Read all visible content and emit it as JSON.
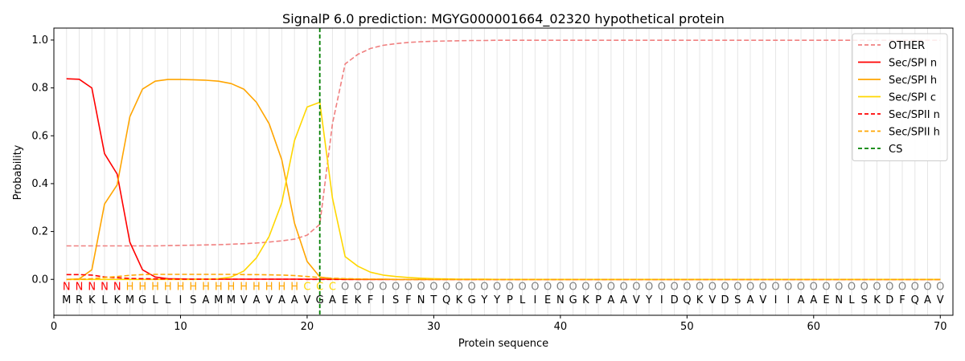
{
  "chart_data": {
    "type": "line",
    "title": "SignalP 6.0 prediction: MGYG000001664_02320 hypothetical protein",
    "xlabel": "Protein sequence",
    "ylabel": "Probability",
    "xlim": [
      0,
      71
    ],
    "ylim": [
      -0.15,
      1.05
    ],
    "x_ticks": [
      0,
      10,
      20,
      30,
      40,
      50,
      60,
      70
    ],
    "y_ticks": [
      0.0,
      0.2,
      0.4,
      0.6,
      0.8,
      1.0
    ],
    "x_tick_labels": [
      "0",
      "10",
      "20",
      "30",
      "40",
      "50",
      "60",
      "70"
    ],
    "y_tick_labels": [
      "0.0",
      "0.2",
      "0.4",
      "0.6",
      "0.8",
      "1.0"
    ],
    "legend_position": "top-right",
    "sequence": "MRKLKMGLLISAMMVAVAAVGAEKFISFNTQKGYYPLIENGKPAAVYIDQKVDSAVIIAAENLSKDFQAV",
    "labels": "NNNNNHHHHHHHHHHHHHHCCCOOOOOOOOOOOOOOOOOOOOOOOOOOOOOOOOOOOOOOOOOOOOOOOOO",
    "label_colors": {
      "N": "#ff0000",
      "H": "#ffa500",
      "C": "#ffd700",
      "O": "#808080"
    },
    "cs_position": 21,
    "series": [
      {
        "name": "OTHER",
        "color": "#f08080",
        "dash": true,
        "values": [
          0.14,
          0.14,
          0.14,
          0.14,
          0.14,
          0.14,
          0.14,
          0.14,
          0.141,
          0.142,
          0.143,
          0.144,
          0.145,
          0.147,
          0.149,
          0.152,
          0.156,
          0.161,
          0.168,
          0.185,
          0.23,
          0.65,
          0.9,
          0.94,
          0.965,
          0.978,
          0.985,
          0.99,
          0.993,
          0.995,
          0.996,
          0.997,
          0.998,
          0.998,
          0.999,
          0.999,
          0.999,
          0.999,
          0.999,
          0.999,
          0.999,
          0.999,
          0.999,
          0.999,
          0.999,
          0.999,
          0.999,
          0.999,
          0.999,
          0.999,
          0.999,
          0.999,
          0.999,
          0.999,
          0.999,
          0.999,
          0.999,
          0.999,
          0.999,
          0.999,
          0.999,
          0.999,
          0.999,
          0.999,
          0.999,
          0.999,
          0.999,
          0.999,
          0.999,
          0.999
        ]
      },
      {
        "name": "Sec/SPI n",
        "color": "#ff0000",
        "dash": false,
        "values": [
          0.838,
          0.836,
          0.8,
          0.525,
          0.44,
          0.155,
          0.04,
          0.01,
          0.003,
          0.002,
          0.001,
          0.001,
          0.001,
          0.001,
          0.001,
          0.001,
          0.001,
          0.001,
          0.001,
          0.001,
          0.001,
          0.001,
          0,
          0,
          0,
          0,
          0,
          0,
          0,
          0,
          0,
          0,
          0,
          0,
          0,
          0,
          0,
          0,
          0,
          0,
          0,
          0,
          0,
          0,
          0,
          0,
          0,
          0,
          0,
          0,
          0,
          0,
          0,
          0,
          0,
          0,
          0,
          0,
          0,
          0,
          0,
          0,
          0,
          0,
          0,
          0,
          0,
          0,
          0,
          0
        ]
      },
      {
        "name": "Sec/SPI h",
        "color": "#ffa500",
        "dash": false,
        "values": [
          0,
          0.002,
          0.04,
          0.315,
          0.395,
          0.68,
          0.795,
          0.828,
          0.835,
          0.835,
          0.834,
          0.832,
          0.828,
          0.818,
          0.795,
          0.74,
          0.65,
          0.5,
          0.235,
          0.075,
          0.01,
          0.003,
          0.002,
          0.001,
          0.001,
          0.001,
          0,
          0,
          0,
          0,
          0,
          0,
          0,
          0,
          0,
          0,
          0,
          0,
          0,
          0,
          0,
          0,
          0,
          0,
          0,
          0,
          0,
          0,
          0,
          0,
          0,
          0,
          0,
          0,
          0,
          0,
          0,
          0,
          0,
          0,
          0,
          0,
          0,
          0,
          0,
          0,
          0,
          0,
          0,
          0
        ]
      },
      {
        "name": "Sec/SPI c",
        "color": "#ffd700",
        "dash": false,
        "values": [
          0,
          0,
          0,
          0,
          0,
          0,
          0,
          0,
          0,
          0,
          0,
          0.001,
          0.003,
          0.01,
          0.035,
          0.09,
          0.18,
          0.32,
          0.58,
          0.72,
          0.74,
          0.34,
          0.095,
          0.055,
          0.03,
          0.018,
          0.012,
          0.008,
          0.005,
          0.003,
          0.002,
          0.001,
          0.001,
          0.001,
          0,
          0,
          0,
          0,
          0,
          0,
          0,
          0,
          0,
          0,
          0,
          0,
          0,
          0,
          0,
          0,
          0,
          0,
          0,
          0,
          0,
          0,
          0,
          0,
          0,
          0,
          0,
          0,
          0,
          0,
          0,
          0,
          0,
          0,
          0,
          0
        ]
      },
      {
        "name": "Sec/SPII n",
        "color": "#ff0000",
        "dash": true,
        "values": [
          0.02,
          0.02,
          0.018,
          0.01,
          0.007,
          0.004,
          0.003,
          0.002,
          0.002,
          0.001,
          0.001,
          0.001,
          0.001,
          0.001,
          0.001,
          0.001,
          0.001,
          0.001,
          0.001,
          0,
          0,
          0,
          0,
          0,
          0,
          0,
          0,
          0,
          0,
          0,
          0,
          0,
          0,
          0,
          0,
          0,
          0,
          0,
          0,
          0,
          0,
          0,
          0,
          0,
          0,
          0,
          0,
          0,
          0,
          0,
          0,
          0,
          0,
          0,
          0,
          0,
          0,
          0,
          0,
          0,
          0,
          0,
          0,
          0,
          0,
          0,
          0,
          0,
          0,
          0
        ]
      },
      {
        "name": "Sec/SPII h",
        "color": "#ffa500",
        "dash": true,
        "values": [
          0,
          0,
          0.003,
          0.008,
          0.012,
          0.017,
          0.02,
          0.021,
          0.021,
          0.021,
          0.021,
          0.021,
          0.021,
          0.021,
          0.02,
          0.02,
          0.019,
          0.018,
          0.016,
          0.012,
          0.008,
          0.005,
          0.003,
          0.002,
          0.001,
          0.001,
          0,
          0,
          0,
          0,
          0,
          0,
          0,
          0,
          0,
          0,
          0,
          0,
          0,
          0,
          0,
          0,
          0,
          0,
          0,
          0,
          0,
          0,
          0,
          0,
          0,
          0,
          0,
          0,
          0,
          0,
          0,
          0,
          0,
          0,
          0,
          0,
          0,
          0,
          0,
          0,
          0,
          0,
          0,
          0
        ]
      }
    ],
    "cs_legend": {
      "name": "CS",
      "color": "#008000"
    }
  }
}
